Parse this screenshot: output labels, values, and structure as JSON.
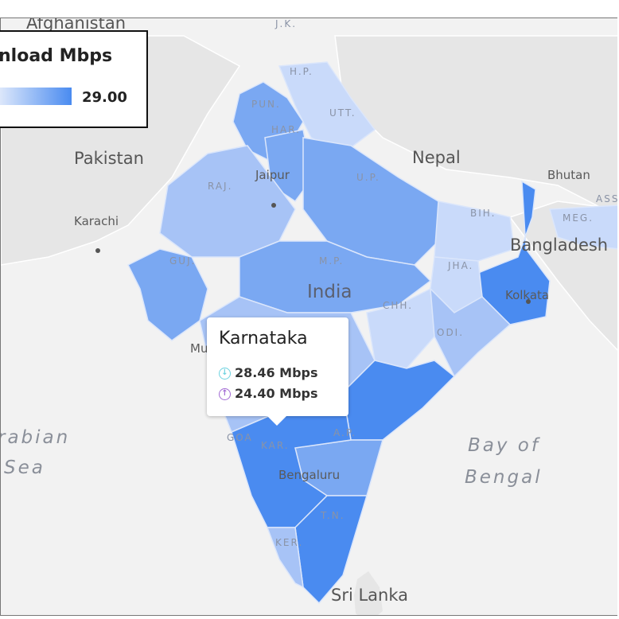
{
  "legend": {
    "title": "nload Mbps",
    "max_value": "29.00"
  },
  "tooltip": {
    "region": "Karnataka",
    "download": "28.46 Mbps",
    "upload": "24.40 Mbps",
    "download_icon": "download-arrow-icon",
    "upload_icon": "upload-arrow-icon"
  },
  "labels": {
    "countries": {
      "afghanistan": "Afghanistan",
      "pakistan": "Pakistan",
      "nepal": "Nepal",
      "bhutan": "Bhutan",
      "bangladesh": "Bangladesh",
      "india": "India",
      "sri_lanka": "Sri Lanka"
    },
    "states": {
      "jk": "J.K.",
      "hp": "H.P.",
      "pun": "PUN.",
      "utt": "UTT.",
      "har": "HAR.",
      "raj": "RAJ.",
      "up": "U.P.",
      "bih": "BIH.",
      "ass": "ASS",
      "meg": "MEG.",
      "guj": "GUJ.",
      "mp": "M.P.",
      "jha": "JHA.",
      "chh": "CHH.",
      "odi": "ODI.",
      "goa": "GOA",
      "kar": "KAR.",
      "ap": "A.P.",
      "tn": "T.N.",
      "ker": "KER."
    },
    "cities": {
      "jaipur": "Jaipur",
      "karachi": "Karachi",
      "kolkata": "Kolkata",
      "mumbai": "Mu",
      "bengaluru": "Bengaluru"
    },
    "seas": {
      "arabian_1": "rabian",
      "arabian_2": "Sea",
      "bay_1": "Bay of",
      "bay_2": "Bengal"
    }
  },
  "colors": {
    "background": "#f2f2f2",
    "light": "#c9dafa",
    "medium": "#a7c3f6",
    "strong": "#7aa8f2",
    "darkest": "#4a8bf0"
  }
}
